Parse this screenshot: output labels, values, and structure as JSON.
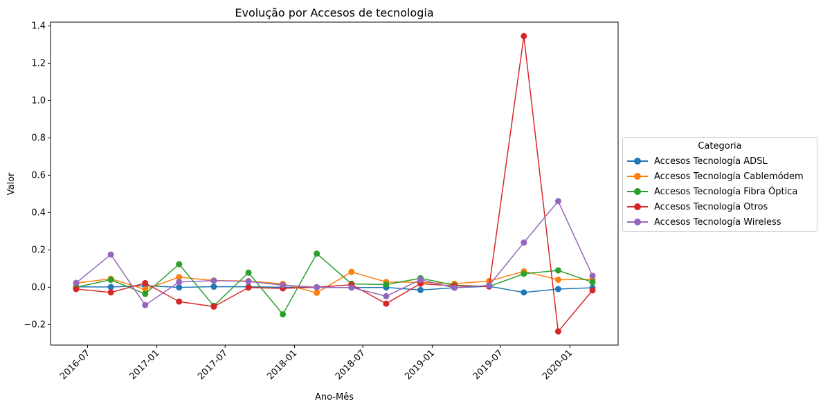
{
  "chart_data": {
    "type": "line",
    "title": "Evolução por  Accesos de tecnologia",
    "xlabel": "Ano-Mês",
    "ylabel": "Valor",
    "x": [
      "2016-06",
      "2016-09",
      "2016-12",
      "2017-03",
      "2017-06",
      "2017-09",
      "2017-12",
      "2018-03",
      "2018-06",
      "2018-09",
      "2018-12",
      "2019-03",
      "2019-06",
      "2019-09",
      "2019-12",
      "2020-03"
    ],
    "x_ticks": [
      "2016-07",
      "2017-01",
      "2017-07",
      "2018-01",
      "2018-07",
      "2019-01",
      "2019-07",
      "2020-01"
    ],
    "y_ticks": [
      "−0.2",
      "0.0",
      "0.2",
      "0.4",
      "0.6",
      "0.8",
      "1.0",
      "1.2",
      "1.4"
    ],
    "ylim": [
      -0.31,
      1.42
    ],
    "grid": false,
    "legend": {
      "title": "Categoria",
      "placement": "center-right, outside plot"
    },
    "series": [
      {
        "name": "Accesos Tecnología ADSL",
        "color": "#1f77b4",
        "values": [
          0.002,
          0.001,
          0.008,
          -0.001,
          0.003,
          0.002,
          0.0,
          -0.001,
          -0.002,
          -0.001,
          -0.015,
          -0.003,
          0.005,
          -0.028,
          -0.01,
          -0.003
        ]
      },
      {
        "name": "Accesos Tecnología Cablemódem",
        "color": "#ff7f0e",
        "values": [
          0.022,
          0.045,
          -0.012,
          0.054,
          0.036,
          0.033,
          0.018,
          -0.03,
          0.082,
          0.028,
          0.026,
          0.019,
          0.033,
          0.085,
          0.04,
          0.042
        ]
      },
      {
        "name": "Accesos Tecnología Fibra Óptica",
        "color": "#2ca02c",
        "values": [
          0.0,
          0.04,
          -0.036,
          0.123,
          -0.1,
          0.078,
          -0.145,
          0.18,
          0.018,
          0.014,
          0.048,
          0.011,
          0.004,
          0.072,
          0.09,
          0.027
        ]
      },
      {
        "name": "Accesos Tecnología Otros",
        "color": "#d62728",
        "values": [
          -0.01,
          -0.028,
          0.022,
          -0.077,
          -0.104,
          -0.002,
          -0.006,
          0.0,
          0.013,
          -0.088,
          0.019,
          0.007,
          0.004,
          1.345,
          -0.237,
          -0.017
        ]
      },
      {
        "name": "Accesos Tecnología Wireless",
        "color": "#9467bd",
        "values": [
          0.023,
          0.175,
          -0.096,
          0.028,
          0.035,
          0.031,
          0.011,
          0.0,
          -0.002,
          -0.048,
          0.04,
          -0.003,
          0.01,
          0.239,
          0.461,
          0.061
        ]
      }
    ]
  }
}
